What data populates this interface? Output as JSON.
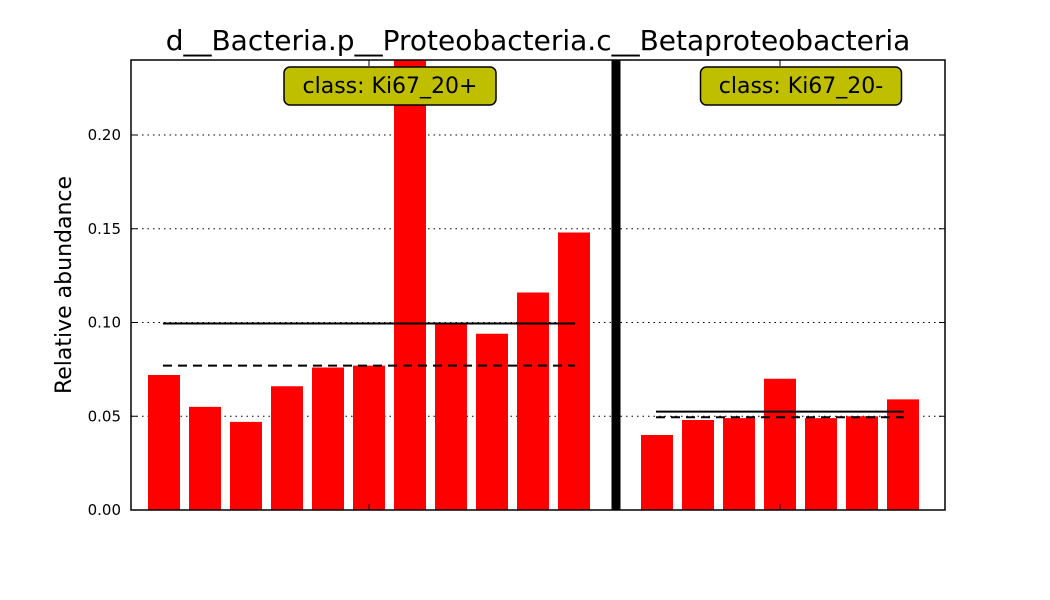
{
  "chart_data": {
    "type": "bar",
    "title": "d__Bacteria.p__Proteobacteria.c__Betaproteobacteria",
    "xlabel": "",
    "ylabel": "Relative abundance",
    "ylim": [
      0,
      0.24
    ],
    "yticks": [
      "0.00",
      "0.05",
      "0.10",
      "0.15",
      "0.20"
    ],
    "grid": true,
    "bar_color": "#ff0000",
    "label_box_color": "#bfbf00",
    "groups": [
      {
        "label": "class: Ki67_20+",
        "values": [
          0.072,
          0.055,
          0.047,
          0.066,
          0.076,
          0.077,
          0.24,
          0.1,
          0.094,
          0.116,
          0.148
        ],
        "mean": 0.0995,
        "median": 0.077
      },
      {
        "label": "class: Ki67_20-",
        "values": [
          0.04,
          0.048,
          0.049,
          0.07,
          0.049,
          0.05,
          0.059
        ],
        "mean": 0.0525,
        "median": 0.0495
      }
    ]
  }
}
